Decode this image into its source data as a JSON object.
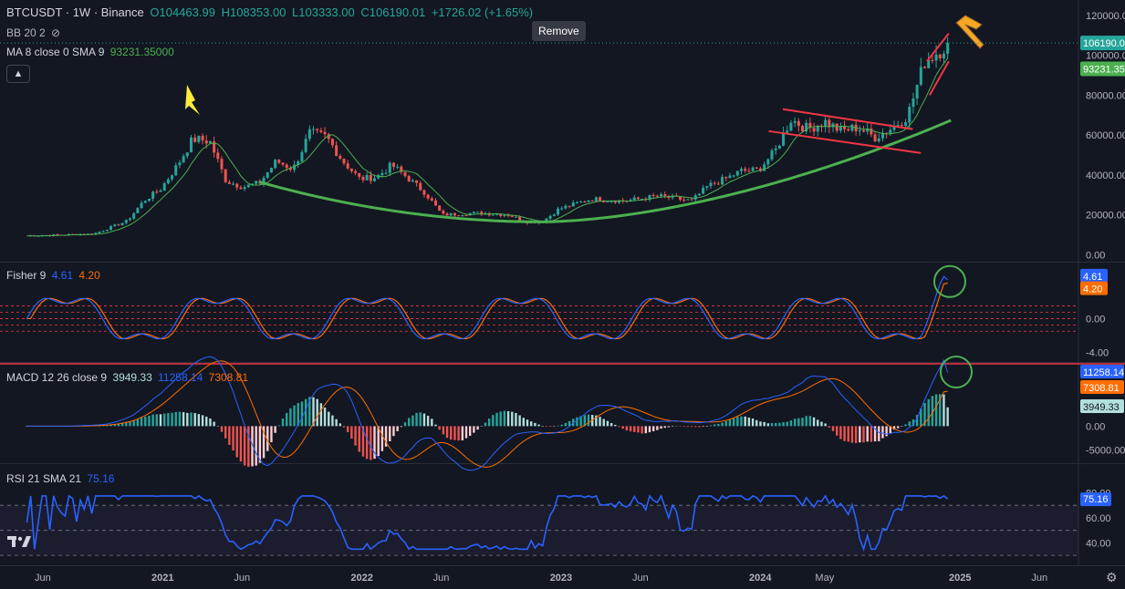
{
  "header": {
    "symbol": "BTCUSDT · 1W · Binance",
    "open": "O104463.99",
    "high": "H108353.00",
    "low": "L103333.00",
    "close": "C106190.01",
    "change": "+1726.02 (+1.65%)"
  },
  "indicators": {
    "bb_label": "BB 20 2",
    "ma_label": "MA 8 close 0 SMA 9",
    "ma_value": "93231.35000",
    "fisher_label": "Fisher 9",
    "fisher_value_1": "4.61",
    "fisher_value_2": "4.20",
    "macd_label": "MACD 12 26 close 9",
    "macd_hist": "3949.33",
    "macd_line": "11258.14",
    "macd_signal": "7308.81",
    "rsi_label": "RSI 21 SMA 21",
    "rsi_value": "75.16"
  },
  "tooltip": {
    "remove": "Remove"
  },
  "colors": {
    "background": "#131722",
    "up": "#26a69a",
    "down": "#ef5350",
    "ma_line": "#4caf50",
    "arc": "#4caf50",
    "channel": "#f23645",
    "fisher_fast": "#2962ff",
    "fisher_slow": "#ff6d00",
    "rsi": "#2962ff",
    "arrow": "#ffeb3b"
  },
  "chart_data": [
    {
      "type": "candlestick",
      "title": "BTCUSDT · 1W · Binance",
      "y_ticks": [
        0,
        20000,
        40000,
        60000,
        80000,
        100000,
        120000
      ],
      "y_tick_labels": [
        "0.00",
        "20000.00",
        "40000.00",
        "60000.00",
        "80000.00",
        "100000.00",
        "120000.00"
      ],
      "price_labels": [
        {
          "value": 106190.01,
          "label": "106190.01"
        },
        {
          "value": 93231.35,
          "label": "93231.35"
        }
      ],
      "x_tick_labels": [
        "Jun",
        "2021",
        "Jun",
        "2022",
        "Jun",
        "2023",
        "Jun",
        "2024",
        "May",
        "2025",
        "Jun"
      ],
      "ylim": [
        -3000,
        125000
      ],
      "close_anchors": [
        [
          "2020-05",
          9500
        ],
        [
          "2020-09",
          10500
        ],
        [
          "2020-11",
          17000
        ],
        [
          "2020-12",
          27000
        ],
        [
          "2021-01",
          33000
        ],
        [
          "2021-02",
          45000
        ],
        [
          "2021-03",
          58000
        ],
        [
          "2021-04",
          57000
        ],
        [
          "2021-05",
          37000
        ],
        [
          "2021-06",
          34000
        ],
        [
          "2021-07",
          36000
        ],
        [
          "2021-08",
          47000
        ],
        [
          "2021-09",
          43000
        ],
        [
          "2021-10",
          61000
        ],
        [
          "2021-11",
          59000
        ],
        [
          "2021-12",
          47000
        ],
        [
          "2022-01",
          38000
        ],
        [
          "2022-02",
          39000
        ],
        [
          "2022-03",
          45000
        ],
        [
          "2022-04",
          38000
        ],
        [
          "2022-05",
          31000
        ],
        [
          "2022-06",
          20000
        ],
        [
          "2022-08",
          21000
        ],
        [
          "2022-10",
          20000
        ],
        [
          "2022-11",
          16500
        ],
        [
          "2022-12",
          16500
        ],
        [
          "2023-01",
          23000
        ],
        [
          "2023-03",
          28000
        ],
        [
          "2023-05",
          27000
        ],
        [
          "2023-07",
          29500
        ],
        [
          "2023-09",
          27000
        ],
        [
          "2023-10",
          34500
        ],
        [
          "2023-11",
          38000
        ],
        [
          "2023-12",
          42000
        ],
        [
          "2024-01",
          42500
        ],
        [
          "2024-02",
          52000
        ],
        [
          "2024-03",
          68000
        ],
        [
          "2024-04",
          63000
        ],
        [
          "2024-05",
          67000
        ],
        [
          "2024-06",
          62000
        ],
        [
          "2024-07",
          64000
        ],
        [
          "2024-08",
          59000
        ],
        [
          "2024-09",
          63500
        ],
        [
          "2024-10",
          70000
        ],
        [
          "2024-11",
          97000
        ],
        [
          "2024-12-15",
          106190
        ]
      ],
      "ma_value": 93231.35
    },
    {
      "type": "line",
      "title": "Fisher 9",
      "series": [
        {
          "name": "4.61",
          "values_last": 4.61
        },
        {
          "name": "4.20",
          "values_last": 4.2
        }
      ],
      "y_tick_labels": [
        "4.61",
        "4.20",
        "0.00",
        "-4.00"
      ],
      "ylim": [
        -4.5,
        6
      ],
      "levels": [
        -1.5,
        -0.75,
        0,
        0.75,
        1.5
      ]
    },
    {
      "type": "bar",
      "title": "MACD 12 26 close 9",
      "y_tick_labels": [
        "11258.14",
        "7308.81",
        "3949.33",
        "0.00",
        "-5000.00"
      ],
      "ylim": [
        -7000,
        12500
      ],
      "last": {
        "hist": 3949.33,
        "macd": 11258.14,
        "signal": 7308.81
      }
    },
    {
      "type": "line",
      "title": "RSI 21 SMA 21",
      "series": [
        {
          "name": "75.16",
          "values_last": 75.16
        }
      ],
      "y_tick_labels": [
        "80.00",
        "75.16",
        "60.00",
        "40.00"
      ],
      "ylim": [
        25,
        100
      ],
      "levels": [
        30,
        50,
        70
      ]
    }
  ]
}
